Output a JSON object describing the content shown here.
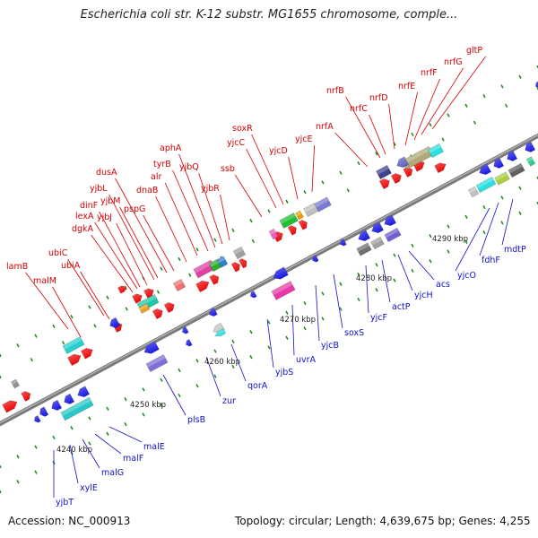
{
  "title": "Escherichia coli str. K-12 substr. MG1655 chromosome, comple...",
  "footer": {
    "accession": "Accession: NC_000913",
    "summary": "Topology: circular; Length: 4,639,675 bp; Genes: 4,255"
  },
  "colors": {
    "top_label": "#d40000",
    "bottom_label": "#1010c8",
    "tick": "#1f8f1f",
    "axis": "#808080",
    "arrow_red": "#ee0a0a",
    "arrow_blue": "#1a1ae6"
  },
  "scale_labels": [
    "4240 kbp",
    "4250 kbp",
    "4260 kbp",
    "4270 kbp",
    "4280 kbp",
    "4290 kbp"
  ],
  "genes_top": [
    "lamB",
    "malM",
    "ubiC",
    "ubiA",
    "dgkA",
    "lexA",
    "dinF",
    "yjbJ",
    "yjbL",
    "yjbM",
    "dusA",
    "pspG",
    "dnaB",
    "alr",
    "tyrB",
    "aphA",
    "yjbQ",
    "yjbR",
    "ssb",
    "yjcC",
    "soxR",
    "yjcD",
    "yjcE",
    "nrfA",
    "nrfB",
    "nrfC",
    "nrfD",
    "nrfE",
    "nrfF",
    "nrfG",
    "gltP"
  ],
  "genes_bottom": [
    "yjbT",
    "xylE",
    "malG",
    "malF",
    "malE",
    "plsB",
    "zur",
    "qorA",
    "yjbS",
    "uvrA",
    "yjcB",
    "soxS",
    "yjcF",
    "actP",
    "yjcH",
    "acs",
    "yjcO",
    "fdhF",
    "mdtP"
  ]
}
